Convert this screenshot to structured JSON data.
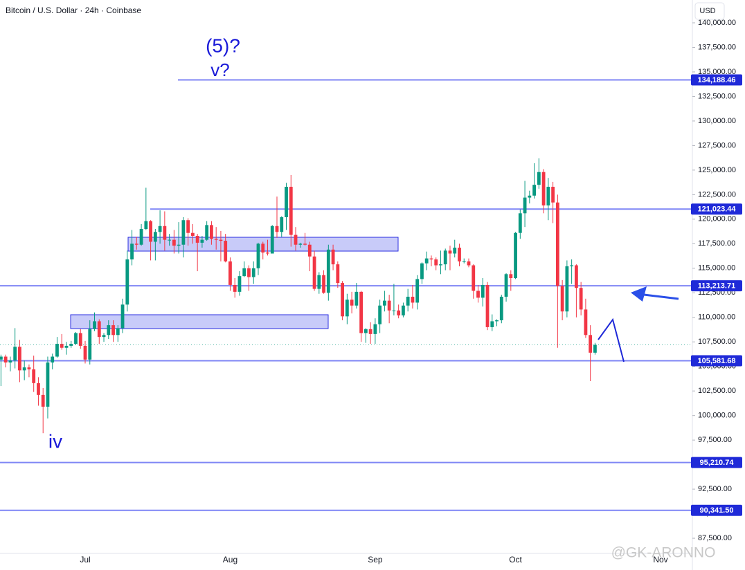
{
  "chart_data": {
    "type": "candlestick",
    "title": "Bitcoin / U.S. Dollar · 24h · Coinbase",
    "currency": "USD",
    "watermark": "@GK-ARONNO",
    "annotations": [
      "(5)?",
      "v?",
      "iv"
    ],
    "up_color": "#089981",
    "down_color": "#f23645",
    "level_color": "#7f86f5",
    "grid": false,
    "ylim": [
      85955,
      142325
    ],
    "yticks": [
      {
        "value": 140000,
        "label": "140,000.00"
      },
      {
        "value": 137500,
        "label": "137,500.00"
      },
      {
        "value": 135000,
        "label": "135,000.00"
      },
      {
        "value": 132500,
        "label": "132,500.00"
      },
      {
        "value": 130000,
        "label": "130,000.00"
      },
      {
        "value": 127500,
        "label": "127,500.00"
      },
      {
        "value": 125000,
        "label": "125,000.00"
      },
      {
        "value": 122500,
        "label": "122,500.00"
      },
      {
        "value": 120000,
        "label": "120,000.00"
      },
      {
        "value": 117500,
        "label": "117,500.00"
      },
      {
        "value": 115000,
        "label": "115,000.00"
      },
      {
        "value": 112500,
        "label": "112,500.00"
      },
      {
        "value": 110000,
        "label": "110,000.00"
      },
      {
        "value": 107500,
        "label": "107,500.00"
      },
      {
        "value": 105000,
        "label": "105,000.00"
      },
      {
        "value": 102500,
        "label": "102,500.00"
      },
      {
        "value": 100000,
        "label": "100,000.00"
      },
      {
        "value": 97500,
        "label": "97,500.00"
      },
      {
        "value": 95000,
        "label": "95,000.00"
      },
      {
        "value": 92500,
        "label": "92,500.00"
      },
      {
        "value": 90000,
        "label": "90,000.00"
      },
      {
        "value": 87500,
        "label": "87,500.00"
      }
    ],
    "levels": [
      {
        "value": 134188.46,
        "label": "134,188.46"
      },
      {
        "value": 121023.44,
        "label": "121,023.44"
      },
      {
        "value": 113213.71,
        "label": "113,213.71"
      },
      {
        "value": 105581.68,
        "label": "105,581.68"
      },
      {
        "value": 95210.74,
        "label": "95,210.74"
      },
      {
        "value": 90341.5,
        "label": "90,341.50"
      }
    ],
    "categories": [
      null,
      null,
      null,
      null,
      null,
      null,
      null,
      null,
      null,
      null,
      null,
      null,
      null,
      null,
      null,
      null,
      null,
      null,
      "Jul",
      null,
      null,
      null,
      null,
      null,
      null,
      null,
      null,
      null,
      null,
      null,
      null,
      null,
      null,
      null,
      null,
      null,
      null,
      null,
      null,
      null,
      null,
      null,
      null,
      null,
      null,
      null,
      null,
      null,
      null,
      "Aug",
      null,
      null,
      null,
      null,
      null,
      null,
      null,
      null,
      null,
      null,
      null,
      null,
      null,
      null,
      null,
      null,
      null,
      null,
      null,
      null,
      null,
      null,
      null,
      null,
      null,
      null,
      null,
      null,
      null,
      null,
      "Sep",
      null,
      null,
      null,
      null,
      null,
      null,
      null,
      null,
      null,
      null,
      null,
      null,
      null,
      null,
      null,
      null,
      null,
      null,
      null,
      null,
      null,
      null,
      null,
      null,
      null,
      null,
      null,
      null,
      null,
      "Oct",
      null,
      null,
      null,
      null,
      null,
      null,
      null,
      null,
      null,
      null,
      null,
      null,
      null,
      null,
      null,
      null,
      null,
      null,
      null,
      null,
      null,
      null,
      null,
      null,
      null,
      null,
      null,
      null,
      null,
      null,
      "Nov"
    ],
    "values": [
      [
        105700,
        106200,
        103000,
        106000
      ],
      [
        106000,
        106200,
        104900,
        105400
      ],
      [
        105400,
        106000,
        104500,
        105600
      ],
      [
        105600,
        108900,
        104800,
        107000
      ],
      [
        107000,
        107700,
        103400,
        104600
      ],
      [
        104600,
        105600,
        103600,
        104900
      ],
      [
        104900,
        105200,
        103900,
        104700
      ],
      [
        104700,
        106100,
        102400,
        103300
      ],
      [
        103300,
        103900,
        101000,
        102100
      ],
      [
        102100,
        102800,
        98200,
        100900
      ],
      [
        100900,
        106000,
        99700,
        105400
      ],
      [
        105400,
        106300,
        104700,
        106000
      ],
      [
        106000,
        108000,
        105900,
        107300
      ],
      [
        107300,
        108300,
        106700,
        106900
      ],
      [
        106900,
        107500,
        106200,
        107100
      ],
      [
        107100,
        107600,
        106900,
        107300
      ],
      [
        107300,
        108500,
        107200,
        108400
      ],
      [
        108400,
        108800,
        106800,
        107100
      ],
      [
        107100,
        107600,
        105300,
        105700
      ],
      [
        105700,
        109700,
        105200,
        108800
      ],
      [
        108800,
        110500,
        108600,
        109600
      ],
      [
        109600,
        109800,
        107300,
        108000
      ],
      [
        108000,
        108400,
        107500,
        108200
      ],
      [
        108200,
        109700,
        107800,
        109200
      ],
      [
        109200,
        109700,
        107500,
        108200
      ],
      [
        108200,
        109200,
        107500,
        108900
      ],
      [
        108900,
        111900,
        108400,
        111300
      ],
      [
        111300,
        116800,
        110600,
        115900
      ],
      [
        115900,
        118900,
        115300,
        117500
      ],
      [
        117500,
        118200,
        116900,
        117400
      ],
      [
        117400,
        119500,
        117300,
        119000
      ],
      [
        119000,
        123200,
        118900,
        119800
      ],
      [
        119800,
        119900,
        115800,
        117700
      ],
      [
        117700,
        119000,
        115800,
        118700
      ],
      [
        118700,
        120900,
        117500,
        119300
      ],
      [
        119300,
        120800,
        116800,
        117900
      ],
      [
        117900,
        118500,
        117300,
        117900
      ],
      [
        117900,
        118900,
        116500,
        117300
      ],
      [
        117300,
        119700,
        116500,
        117400
      ],
      [
        117400,
        120200,
        116100,
        119900
      ],
      [
        119900,
        120100,
        117300,
        118600
      ],
      [
        118600,
        119500,
        117500,
        118300
      ],
      [
        118300,
        118500,
        114700,
        117600
      ],
      [
        117600,
        118300,
        117100,
        117900
      ],
      [
        117900,
        119800,
        117800,
        119400
      ],
      [
        119400,
        119800,
        117400,
        118000
      ],
      [
        118000,
        119200,
        116900,
        117900
      ],
      [
        117900,
        118800,
        115700,
        117800
      ],
      [
        117800,
        118500,
        115600,
        115700
      ],
      [
        115700,
        116100,
        112700,
        113300
      ],
      [
        113300,
        114000,
        112000,
        112600
      ],
      [
        112600,
        114700,
        112200,
        114200
      ],
      [
        114200,
        115700,
        114100,
        115000
      ],
      [
        115000,
        115300,
        112700,
        114100
      ],
      [
        114100,
        115700,
        113400,
        115000
      ],
      [
        115000,
        117600,
        114300,
        117500
      ],
      [
        117500,
        117700,
        115900,
        116600
      ],
      [
        116600,
        117900,
        116300,
        116500
      ],
      [
        116500,
        119400,
        116500,
        119300
      ],
      [
        119300,
        122300,
        118100,
        118700
      ],
      [
        118700,
        120300,
        118200,
        120200
      ],
      [
        120200,
        123700,
        118900,
        123300
      ],
      [
        123300,
        124500,
        117200,
        118400
      ],
      [
        118400,
        119200,
        116800,
        117400
      ],
      [
        117400,
        117600,
        117100,
        117500
      ],
      [
        117500,
        118600,
        117300,
        117400
      ],
      [
        117400,
        117700,
        114700,
        116200
      ],
      [
        116200,
        116800,
        112700,
        112900
      ],
      [
        112900,
        114600,
        112400,
        114300
      ],
      [
        114300,
        114800,
        112400,
        112500
      ],
      [
        112500,
        117400,
        111700,
        116900
      ],
      [
        116900,
        117400,
        114800,
        115400
      ],
      [
        115400,
        115700,
        113000,
        113500
      ],
      [
        113500,
        113700,
        109700,
        110100
      ],
      [
        110100,
        112400,
        109300,
        111800
      ],
      [
        111800,
        112600,
        110400,
        111200
      ],
      [
        111200,
        113500,
        110900,
        112600
      ],
      [
        112600,
        112700,
        107500,
        108400
      ],
      [
        108400,
        108900,
        107400,
        108800
      ],
      [
        108800,
        109500,
        107300,
        108300
      ],
      [
        108300,
        109900,
        107300,
        109300
      ],
      [
        109300,
        111800,
        108400,
        111200
      ],
      [
        111200,
        112700,
        110600,
        111700
      ],
      [
        111700,
        112300,
        109400,
        110700
      ],
      [
        110700,
        113400,
        110200,
        110700
      ],
      [
        110700,
        111300,
        109900,
        110200
      ],
      [
        110200,
        111500,
        110000,
        111200
      ],
      [
        111200,
        112900,
        110600,
        112100
      ],
      [
        112100,
        113300,
        110900,
        111500
      ],
      [
        111500,
        114300,
        110800,
        113900
      ],
      [
        113900,
        115600,
        113400,
        115500
      ],
      [
        115500,
        116700,
        114800,
        116000
      ],
      [
        116000,
        116300,
        115200,
        115900
      ],
      [
        115900,
        116100,
        114800,
        115300
      ],
      [
        115300,
        116800,
        114400,
        115400
      ],
      [
        115400,
        117000,
        114800,
        116800
      ],
      [
        116800,
        117300,
        114800,
        116500
      ],
      [
        116500,
        117900,
        116100,
        117100
      ],
      [
        117100,
        117500,
        115200,
        115700
      ],
      [
        115700,
        116000,
        115500,
        115700
      ],
      [
        115700,
        116000,
        115100,
        115300
      ],
      [
        115300,
        115400,
        111900,
        112700
      ],
      [
        112700,
        113300,
        111500,
        112000
      ],
      [
        112000,
        114000,
        111100,
        113300
      ],
      [
        113300,
        113600,
        108700,
        109000
      ],
      [
        109000,
        110300,
        108600,
        109600
      ],
      [
        109600,
        109800,
        109100,
        109700
      ],
      [
        109700,
        112300,
        109400,
        112100
      ],
      [
        112100,
        114500,
        111600,
        114400
      ],
      [
        114400,
        114800,
        112700,
        114000
      ],
      [
        114000,
        118700,
        113900,
        118600
      ],
      [
        118600,
        121000,
        118000,
        120600
      ],
      [
        120600,
        123900,
        119200,
        122200
      ],
      [
        122200,
        122900,
        121600,
        122400
      ],
      [
        122400,
        125700,
        122100,
        123500
      ],
      [
        123500,
        126200,
        123100,
        124800
      ],
      [
        124800,
        125100,
        120600,
        121400
      ],
      [
        121400,
        124200,
        119900,
        123300
      ],
      [
        123300,
        123800,
        119600,
        121700
      ],
      [
        121700,
        122500,
        106900,
        113200
      ],
      [
        113200,
        113800,
        109700,
        110600
      ],
      [
        110600,
        115800,
        110000,
        115200
      ],
      [
        115200,
        115900,
        113400,
        115300
      ],
      [
        115300,
        115400,
        110000,
        113000
      ],
      [
        113000,
        113600,
        110200,
        110800
      ],
      [
        110800,
        111900,
        107900,
        108200
      ],
      [
        108200,
        109200,
        103500,
        106400
      ],
      [
        106400,
        107400,
        106200,
        107200
      ],
      null,
      null,
      null,
      null,
      null,
      null,
      null,
      null,
      null,
      null,
      null,
      null,
      null,
      null
    ]
  }
}
